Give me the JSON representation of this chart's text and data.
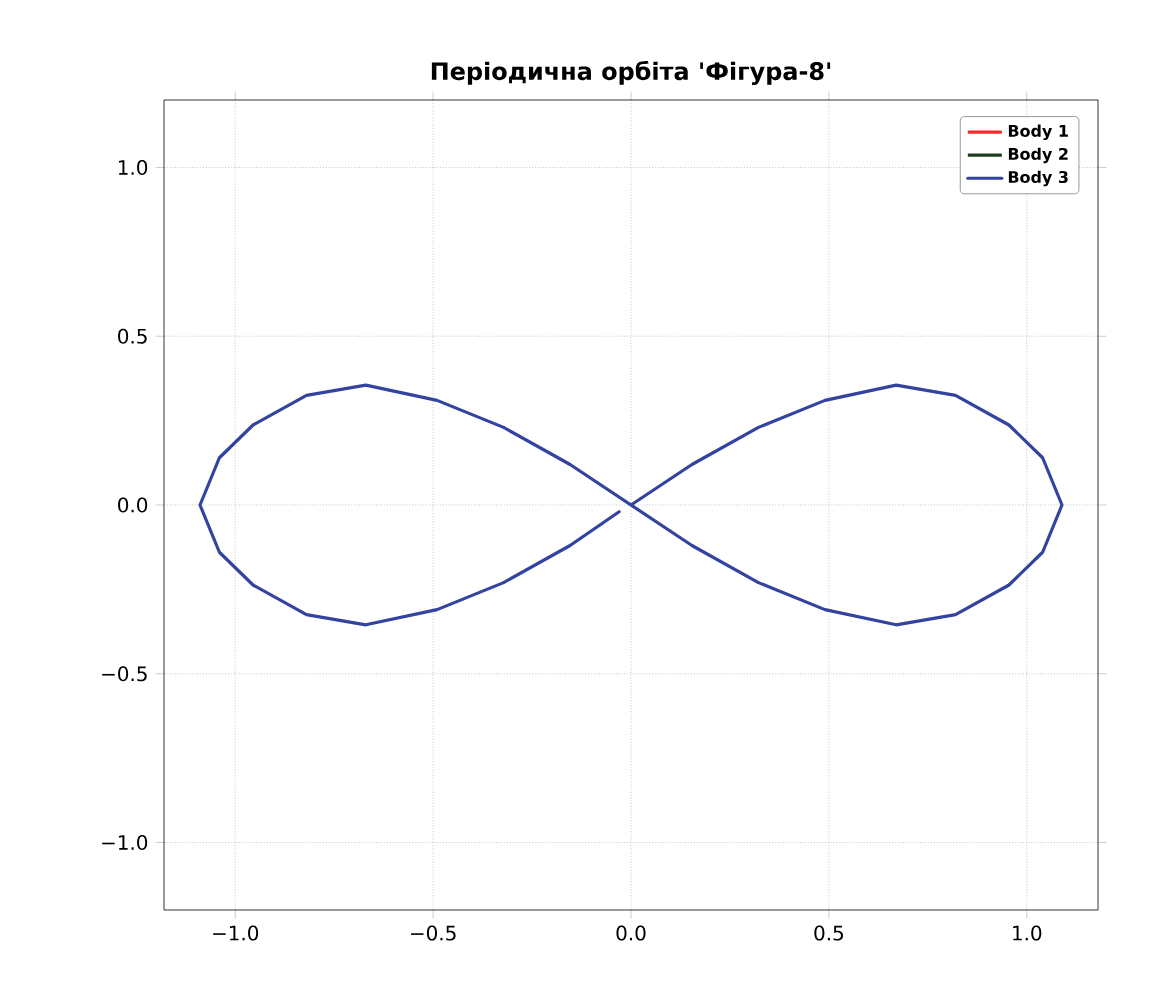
{
  "chart_data": {
    "type": "line",
    "title": "Періодична орбіта 'Фігура-8'",
    "xlim": [
      -1.18,
      1.18
    ],
    "ylim": [
      -1.2,
      1.2
    ],
    "xticks": [
      {
        "value": -1,
        "label": "−1.0"
      },
      {
        "value": -0.5,
        "label": "−0.5"
      },
      {
        "value": 0,
        "label": "0.0"
      },
      {
        "value": 0.5,
        "label": "0.5"
      },
      {
        "value": 1,
        "label": "1.0"
      }
    ],
    "yticks": [
      {
        "value": -1,
        "label": "−1.0"
      },
      {
        "value": -0.5,
        "label": "−0.5"
      },
      {
        "value": 0,
        "label": "0.0"
      },
      {
        "value": 0.5,
        "label": "0.5"
      },
      {
        "value": 1,
        "label": "1.0"
      }
    ],
    "grid": true,
    "legend": "top right",
    "line_style": "solid",
    "series": [
      {
        "name": "Body 1",
        "color": "#ff2a2a"
      },
      {
        "name": "Body 2",
        "color": "#1f3d1f"
      },
      {
        "name": "Body 3",
        "color": "#3343a0",
        "x": [
          0,
          0.154,
          0.322,
          0.49,
          0.67,
          0.82,
          0.955,
          1.04,
          1.089,
          1.04,
          0.955,
          0.82,
          0.67,
          0.49,
          0.322,
          0.154,
          0,
          -0.154,
          -0.322,
          -0.49,
          -0.67,
          -0.82,
          -0.955,
          -1.04,
          -1.089,
          -1.04,
          -0.955,
          -0.82,
          -0.67,
          -0.49,
          -0.322,
          -0.154,
          -0.03
        ],
        "values": [
          0,
          0.12,
          0.23,
          0.31,
          0.355,
          0.325,
          0.237,
          0.14,
          0,
          -0.14,
          -0.237,
          -0.325,
          -0.355,
          -0.31,
          -0.23,
          -0.12,
          0,
          0.12,
          0.23,
          0.31,
          0.355,
          0.325,
          0.237,
          0.14,
          0,
          -0.14,
          -0.237,
          -0.325,
          -0.355,
          -0.31,
          -0.23,
          -0.12,
          -0.02
        ]
      }
    ]
  }
}
